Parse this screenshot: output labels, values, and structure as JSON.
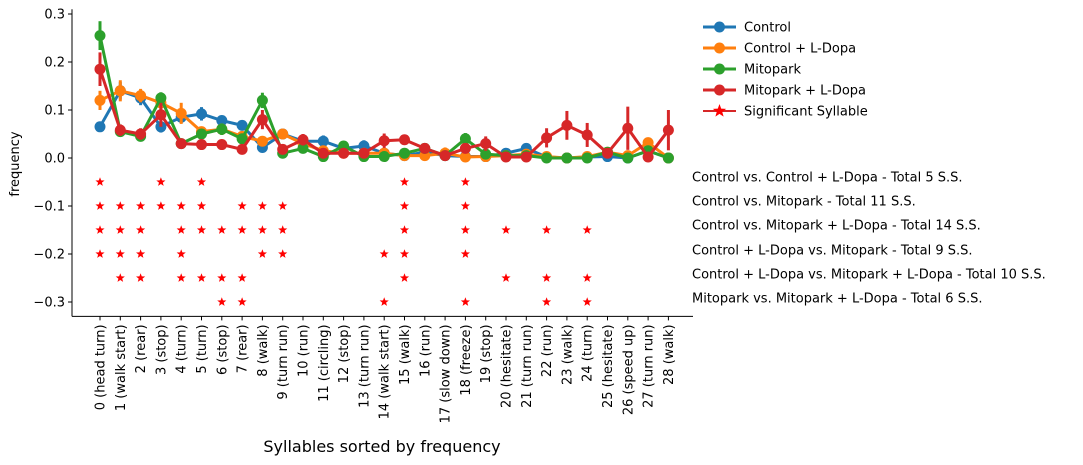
{
  "chart_data": {
    "type": "line",
    "xlabel": "Syllables sorted by frequency",
    "ylabel": "frequency",
    "ylim": [
      -0.33,
      0.31
    ],
    "yticks": [
      0.3,
      0.2,
      0.1,
      0.0,
      -0.1,
      -0.2,
      -0.3
    ],
    "ytick_labels": [
      "0.3",
      "0.2",
      "0.1",
      "0.0",
      "−0.1",
      "−0.2",
      "−0.3"
    ],
    "grid": false,
    "legend_position": "top-right",
    "categories": [
      "0 (head turn)",
      "1 (walk start)",
      "2 (rear)",
      "3 (stop)",
      "4 (turn)",
      "5 (turn)",
      "6 (stop)",
      "7 (rear)",
      "8 (walk)",
      "9 (turn run)",
      "10 (run)",
      "11 (circling)",
      "12 (stop)",
      "13 (turn run)",
      "14 (walk start)",
      "15 (walk)",
      "16 (run)",
      "17 (slow down)",
      "18 (freeze)",
      "19 (stop)",
      "20 (hesitate)",
      "21 (turn run)",
      "22 (run)",
      "23 (walk)",
      "24 (turn)",
      "25 (hesitate)",
      "26 (speed up)",
      "27 (turn run)",
      "28 (walk)"
    ],
    "series": [
      {
        "name": "Control",
        "color": "#1f77b4",
        "values": [
          0.065,
          0.14,
          0.125,
          0.065,
          0.085,
          0.092,
          0.078,
          0.068,
          0.022,
          0.05,
          0.035,
          0.035,
          0.02,
          0.025,
          0.01,
          0.005,
          0.012,
          0.005,
          0.003,
          0.003,
          0.01,
          0.02,
          0.002,
          0.0,
          0.002,
          0.003,
          0.0,
          0.015,
          0.0
        ],
        "err": [
          0.008,
          0.018,
          0.015,
          0.012,
          0.012,
          0.014,
          0.01,
          0.01,
          0.008,
          0.008,
          0.01,
          0.012,
          0.008,
          0.012,
          0.004,
          0.004,
          0.006,
          0.004,
          0.004,
          0.004,
          0.004,
          0.006,
          0.002,
          0.002,
          0.002,
          0.003,
          0.002,
          0.005,
          0.002
        ]
      },
      {
        "name": "Control + L-Dopa",
        "color": "#ff7f0e",
        "values": [
          0.12,
          0.14,
          0.13,
          0.115,
          0.093,
          0.055,
          0.06,
          0.045,
          0.035,
          0.05,
          0.03,
          0.015,
          0.01,
          0.01,
          0.01,
          0.005,
          0.005,
          0.01,
          0.002,
          0.003,
          0.005,
          0.008,
          0.003,
          0.0,
          0.003,
          0.012,
          0.005,
          0.032,
          0.0
        ],
        "err": [
          0.02,
          0.022,
          0.014,
          0.015,
          0.022,
          0.01,
          0.012,
          0.01,
          0.008,
          0.01,
          0.01,
          0.006,
          0.005,
          0.005,
          0.006,
          0.004,
          0.006,
          0.012,
          0.004,
          0.004,
          0.004,
          0.004,
          0.002,
          0.002,
          0.003,
          0.006,
          0.004,
          0.01,
          0.002
        ]
      },
      {
        "name": "Mitopark",
        "color": "#2ca02c",
        "values": [
          0.255,
          0.055,
          0.045,
          0.125,
          0.03,
          0.05,
          0.06,
          0.04,
          0.12,
          0.01,
          0.02,
          0.003,
          0.025,
          0.003,
          0.003,
          0.01,
          0.02,
          0.005,
          0.04,
          0.008,
          0.005,
          0.005,
          0.0,
          0.0,
          0.0,
          0.012,
          0.0,
          0.015,
          0.0
        ],
        "err": [
          0.03,
          0.008,
          0.008,
          0.012,
          0.006,
          0.01,
          0.012,
          0.008,
          0.016,
          0.004,
          0.008,
          0.003,
          0.008,
          0.003,
          0.003,
          0.005,
          0.008,
          0.004,
          0.012,
          0.004,
          0.003,
          0.003,
          0.001,
          0.001,
          0.001,
          0.005,
          0.001,
          0.005,
          0.001
        ]
      },
      {
        "name": "Mitopark + L-Dopa",
        "color": "#d62728",
        "values": [
          0.185,
          0.058,
          0.05,
          0.09,
          0.03,
          0.028,
          0.028,
          0.018,
          0.08,
          0.018,
          0.038,
          0.01,
          0.01,
          0.01,
          0.036,
          0.038,
          0.02,
          0.005,
          0.02,
          0.03,
          0.002,
          0.002,
          0.042,
          0.068,
          0.048,
          0.01,
          0.062,
          0.002,
          0.058
        ],
        "err": [
          0.035,
          0.012,
          0.012,
          0.025,
          0.008,
          0.008,
          0.008,
          0.006,
          0.02,
          0.008,
          0.012,
          0.005,
          0.005,
          0.006,
          0.015,
          0.01,
          0.008,
          0.004,
          0.008,
          0.015,
          0.003,
          0.003,
          0.02,
          0.03,
          0.025,
          0.006,
          0.045,
          0.004,
          0.042
        ]
      }
    ],
    "significant_legend_label": "Significant Syllable",
    "significance_rows": [
      {
        "label": "Control vs. Control + L-Dopa - Total 5 S.S.",
        "y": -0.05,
        "indices": [
          0,
          3,
          5,
          15,
          18
        ]
      },
      {
        "label": "Control vs. Mitopark - Total 11 S.S.",
        "y": -0.1,
        "indices": [
          0,
          1,
          2,
          3,
          4,
          5,
          7,
          8,
          9,
          15,
          18
        ]
      },
      {
        "label": "Control vs. Mitopark + L-Dopa - Total 14 S.S.",
        "y": -0.15,
        "indices": [
          0,
          1,
          2,
          4,
          5,
          6,
          7,
          8,
          9,
          15,
          18,
          20,
          22,
          24
        ]
      },
      {
        "label": "Control + L-Dopa vs. Mitopark - Total 9 S.S.",
        "y": -0.2,
        "indices": [
          0,
          1,
          2,
          4,
          8,
          9,
          14,
          15,
          18
        ]
      },
      {
        "label": "Control + L-Dopa vs. Mitopark + L-Dopa - Total 10 S.S.",
        "y": -0.25,
        "indices": [
          1,
          2,
          4,
          5,
          6,
          7,
          15,
          20,
          22,
          24
        ]
      },
      {
        "label": "Mitopark vs. Mitopark + L-Dopa - Total 6 S.S.",
        "y": -0.3,
        "indices": [
          6,
          7,
          14,
          18,
          22,
          24
        ]
      }
    ]
  }
}
